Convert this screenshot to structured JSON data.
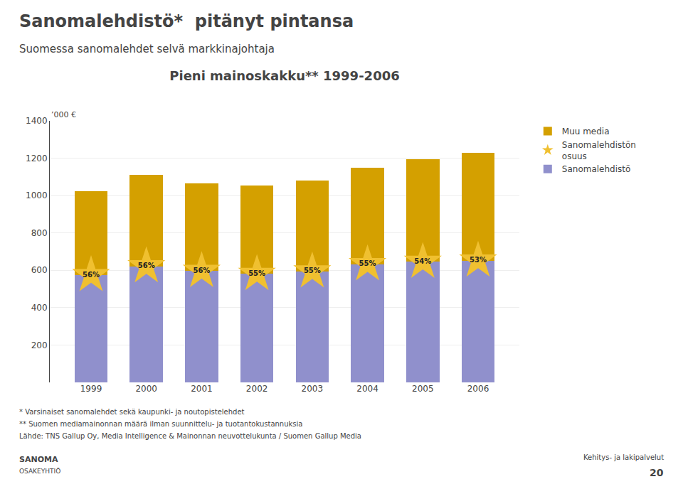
{
  "chart_data": {
    "type": "bar",
    "stacked": true,
    "page_title": "Sanomalehdistö*  pitänyt pintansa",
    "subtitle": "Suomessa sanomalehdet selvä markkinajohtaja",
    "title": "Pieni mainoskakku** 1999-2006",
    "ylabel": "’000 €",
    "categories": [
      "1999",
      "2000",
      "2001",
      "2002",
      "2003",
      "2004",
      "2005",
      "2006"
    ],
    "series": [
      {
        "name": "Sanomalehdistö",
        "color": "#9090CC",
        "values": [
          574,
          621.6,
          596.4,
          580.25,
          594,
          632.5,
          645.3,
          651.9
        ]
      },
      {
        "name": "Muu media",
        "color": "#D4A000",
        "values": [
          451,
          488.4,
          468.6,
          474.75,
          486,
          517.5,
          549.7,
          578.1
        ]
      },
      {
        "name": "Sanomalehdistön\nosuus",
        "type": "scatter",
        "marker": "star",
        "color": "#F0C030",
        "values": [
          574,
          621.6,
          596.4,
          580.25,
          594,
          632.5,
          645.3,
          651.9
        ],
        "point_labels": [
          "56%",
          "56%",
          "56%",
          "55%",
          "55%",
          "55%",
          "54%",
          "53%"
        ]
      }
    ],
    "ylim": [
      0,
      1400
    ],
    "yticks": [
      200,
      400,
      600,
      800,
      1000,
      1200,
      1400
    ],
    "grid": true,
    "legend": "right",
    "footnotes": [
      "* Varsinaiset sanomalehdet sekä kaupunki- ja noutopistelehdet",
      "** Suomen mediamainonnan määrä ilman suunnittelu- ja tuotantokustannuksia",
      "Lähde: TNS Gallup Oy, Media Intelligence & Mainonnan neuvottelukunta / Suomen Gallup Media"
    ],
    "annotations": [
      "Kehitys- ja lakipalvelut",
      "20",
      "SANOMA",
      "OSAKEYHTIÖ"
    ]
  }
}
